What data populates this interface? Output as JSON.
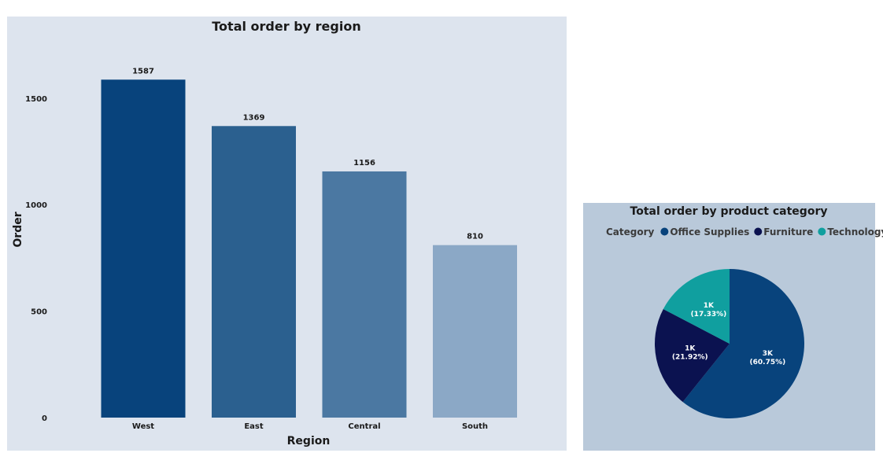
{
  "chart_data": [
    {
      "type": "bar",
      "title": "Total order by region",
      "xlabel": "Region",
      "ylabel": "Order",
      "categories": [
        "West",
        "East",
        "Central",
        "South"
      ],
      "values": [
        1587,
        1369,
        1156,
        810
      ],
      "data_labels": [
        "1587",
        "1369",
        "1156",
        "810"
      ],
      "yticks": [
        0,
        500,
        1000,
        1500
      ],
      "ylim": [
        0,
        1780
      ],
      "colors": [
        "#08437c",
        "#2b608f",
        "#4b78a2",
        "#8ba8c6"
      ],
      "grid": false
    },
    {
      "type": "pie",
      "title": "Total order by product category",
      "legend_title": "Category",
      "legend_position": "top",
      "categories": [
        "Office Supplies",
        "Furniture",
        "Technology"
      ],
      "values": [
        60.75,
        21.92,
        17.33
      ],
      "labels": [
        {
          "value": "3K",
          "percent": "(60.75%)"
        },
        {
          "value": "1K",
          "percent": "(21.92%)"
        },
        {
          "value": "1K",
          "percent": "(17.33%)"
        }
      ],
      "colors": [
        "#08437c",
        "#0b1250",
        "#109f9f"
      ]
    }
  ]
}
